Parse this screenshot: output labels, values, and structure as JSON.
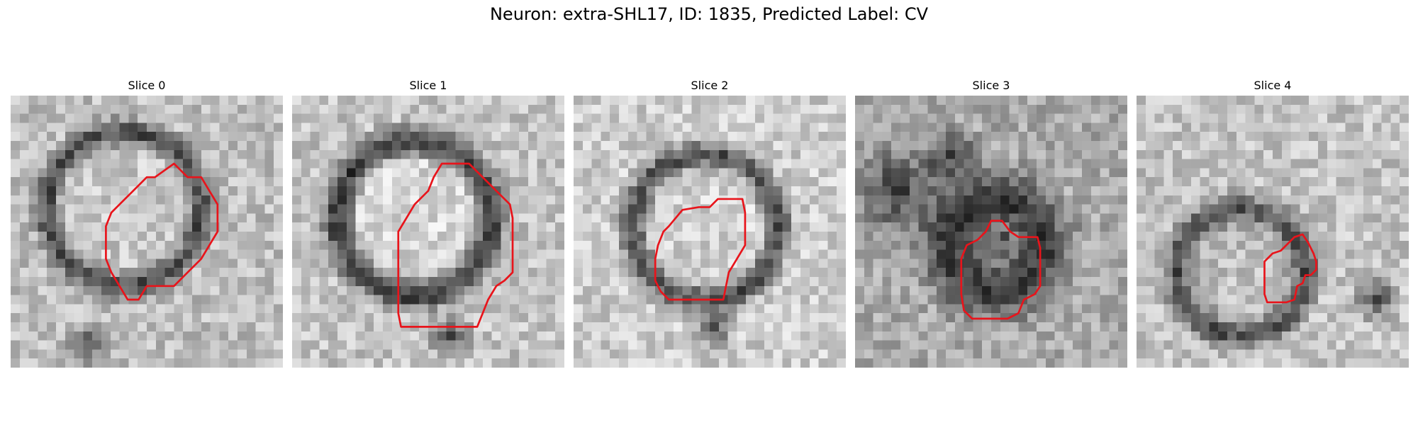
{
  "figure": {
    "title": "Neuron: extra-SHL17, ID: 1835, Predicted Label: CV",
    "contour_color": "#e8141b"
  },
  "panels": [
    {
      "label": "Slice 0",
      "overlay": "red-contour",
      "contour": [
        [
          5.3,
          3
        ],
        [
          6,
          2.5
        ],
        [
          6.5,
          3
        ],
        [
          7,
          3
        ],
        [
          7.3,
          3.5
        ],
        [
          7.6,
          4
        ],
        [
          7.6,
          5
        ],
        [
          7.3,
          5.5
        ],
        [
          7,
          6
        ],
        [
          6.5,
          6.5
        ],
        [
          6,
          7
        ],
        [
          5,
          7
        ],
        [
          4.7,
          7.5
        ],
        [
          4.3,
          7.5
        ],
        [
          4,
          7
        ],
        [
          3.7,
          6.5
        ],
        [
          3.5,
          6
        ],
        [
          3.5,
          4.8
        ],
        [
          3.7,
          4.3
        ],
        [
          4,
          4
        ],
        [
          4.5,
          3.5
        ],
        [
          5,
          3
        ]
      ]
    },
    {
      "label": "Slice 1",
      "overlay": "red-contour",
      "contour": [
        [
          5.5,
          2.5
        ],
        [
          6.5,
          2.5
        ],
        [
          7,
          3
        ],
        [
          7.5,
          3.5
        ],
        [
          8,
          4
        ],
        [
          8.1,
          4.5
        ],
        [
          8.1,
          6.5
        ],
        [
          7.8,
          6.8
        ],
        [
          7.5,
          7
        ],
        [
          7.2,
          7.5
        ],
        [
          7,
          8
        ],
        [
          6.8,
          8.5
        ],
        [
          6,
          8.5
        ],
        [
          4,
          8.5
        ],
        [
          3.9,
          8
        ],
        [
          3.9,
          5
        ],
        [
          4.2,
          4.5
        ],
        [
          4.5,
          4
        ],
        [
          5,
          3.5
        ],
        [
          5.2,
          3
        ]
      ]
    },
    {
      "label": "Slice 2",
      "overlay": "red-contour",
      "contour": [
        [
          5.3,
          3.8
        ],
        [
          6.2,
          3.8
        ],
        [
          6.3,
          4.3
        ],
        [
          6.3,
          5.5
        ],
        [
          6,
          6
        ],
        [
          5.7,
          6.5
        ],
        [
          5.6,
          7
        ],
        [
          5.5,
          7.5
        ],
        [
          4.8,
          7.5
        ],
        [
          3.5,
          7.5
        ],
        [
          3.2,
          7.2
        ],
        [
          3,
          6.8
        ],
        [
          3,
          6
        ],
        [
          3.1,
          5.5
        ],
        [
          3.3,
          5
        ],
        [
          3.5,
          4.8
        ],
        [
          4,
          4.2
        ],
        [
          4.6,
          4.1
        ],
        [
          5,
          4.1
        ]
      ]
    },
    {
      "label": "Slice 3",
      "overlay": "red-contour",
      "contour": [
        [
          5,
          4.6
        ],
        [
          5.4,
          4.6
        ],
        [
          5.7,
          5
        ],
        [
          6,
          5.2
        ],
        [
          6.7,
          5.2
        ],
        [
          6.8,
          5.6
        ],
        [
          6.8,
          7
        ],
        [
          6.6,
          7.3
        ],
        [
          6.2,
          7.5
        ],
        [
          6,
          8
        ],
        [
          5.6,
          8.2
        ],
        [
          4.8,
          8.2
        ],
        [
          4.3,
          8.2
        ],
        [
          4,
          7.9
        ],
        [
          3.9,
          7.3
        ],
        [
          3.9,
          6
        ],
        [
          4.1,
          5.5
        ],
        [
          4.5,
          5.3
        ],
        [
          4.8,
          5
        ]
      ]
    },
    {
      "label": "Slice 4",
      "overlay": "red-contour",
      "contour": [
        [
          5.5,
          5.5
        ],
        [
          5.8,
          5.2
        ],
        [
          6.1,
          5.1
        ],
        [
          6.3,
          5.4
        ],
        [
          6.5,
          5.8
        ],
        [
          6.6,
          6.1
        ],
        [
          6.6,
          6.4
        ],
        [
          6.4,
          6.6
        ],
        [
          6.2,
          6.6
        ],
        [
          6.1,
          6.9
        ],
        [
          5.9,
          7
        ],
        [
          5.8,
          7.5
        ],
        [
          5.5,
          7.6
        ],
        [
          4.8,
          7.6
        ],
        [
          4.7,
          7.3
        ],
        [
          4.7,
          6.1
        ],
        [
          5,
          5.8
        ],
        [
          5.3,
          5.7
        ]
      ]
    }
  ]
}
